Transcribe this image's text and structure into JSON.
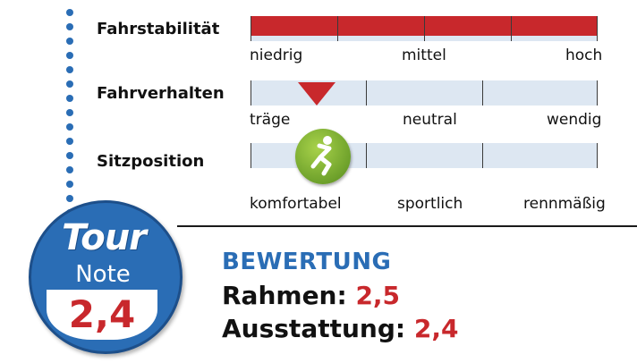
{
  "rows": {
    "fahrstabilitaet": {
      "label": "Fahrstabilität",
      "level": 1.0,
      "scale": [
        "niedrig",
        "mittel",
        "hoch"
      ]
    },
    "fahrverhalten": {
      "label": "Fahrverhalten",
      "marker": "red-triangle",
      "level": 0.18,
      "scale": [
        "träge",
        "neutral",
        "wendig"
      ]
    },
    "sitzposition": {
      "label": "Sitzposition",
      "marker": "green-rider-icon",
      "level": 0.18,
      "scale": [
        "komfortabel",
        "sportlich",
        "rennmäßig"
      ]
    }
  },
  "badge": {
    "logo": "Tour",
    "note_label": "Note",
    "value": "2,4"
  },
  "rating": {
    "heading": "BEWERTUNG",
    "rahmen_label": "Rahmen:",
    "rahmen_value": "2,5",
    "ausstattung_label": "Ausstattung:",
    "ausstattung_value": "2,4"
  },
  "colors": {
    "accent_red": "#c8282c",
    "brand_blue": "#2a6db5",
    "track_bg": "#dde7f2",
    "marker_green": "#7aad32"
  }
}
